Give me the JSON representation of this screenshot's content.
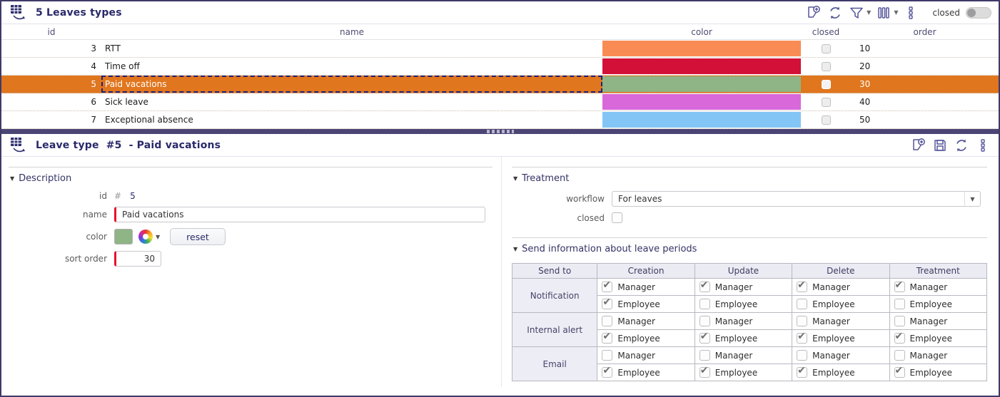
{
  "list_panel": {
    "title": "5 Leaves types",
    "toolbar": {
      "icons": [
        "new-record-icon",
        "refresh-icon",
        "filter-icon",
        "columns-icon",
        "more-menu-icon"
      ],
      "closed_label": "closed",
      "closed_toggle_on": false
    },
    "columns": {
      "id": "id",
      "name": "name",
      "color": "color",
      "closed": "closed",
      "order": "order"
    },
    "rows": [
      {
        "id": "3",
        "name": "RTT",
        "color": "#f98c55",
        "closed": false,
        "order": "10",
        "selected": false
      },
      {
        "id": "4",
        "name": "Time off",
        "color": "#d31038",
        "closed": false,
        "order": "20",
        "selected": false
      },
      {
        "id": "5",
        "name": "Paid vacations",
        "color": "#8fb485",
        "closed": false,
        "order": "30",
        "selected": true
      },
      {
        "id": "6",
        "name": "Sick leave",
        "color": "#d968db",
        "closed": false,
        "order": "40",
        "selected": false
      },
      {
        "id": "7",
        "name": "Exceptional absence",
        "color": "#83c6f5",
        "closed": false,
        "order": "50",
        "selected": false
      }
    ],
    "selected_row_color": "#e0761e"
  },
  "detail_panel": {
    "title_prefix": "Leave type",
    "record_id": "#5",
    "title_suffix": "- Paid vacations",
    "toolbar": {
      "icons": [
        "new-record-icon",
        "save-icon",
        "refresh-icon",
        "more-menu-icon"
      ]
    },
    "description": {
      "section_title": "Description",
      "id_label": "id",
      "id_symbol": "#",
      "id_value": "5",
      "name_label": "name",
      "name_value": "Paid vacations",
      "color_label": "color",
      "color_value": "#8fb485",
      "reset_label": "reset",
      "sort_order_label": "sort order",
      "sort_order_value": "30"
    },
    "treatment": {
      "section_title": "Treatment",
      "workflow_label": "workflow",
      "workflow_value": "For leaves",
      "closed_label": "closed",
      "closed_checked": false
    },
    "send_info": {
      "section_title": "Send information about leave periods",
      "columns": [
        "Send to",
        "Creation",
        "Update",
        "Delete",
        "Treatment"
      ],
      "groups": [
        {
          "label": "Notification",
          "rows": [
            {
              "label": "Manager",
              "checks": [
                true,
                true,
                true,
                true
              ]
            },
            {
              "label": "Employee",
              "checks": [
                true,
                false,
                false,
                false
              ]
            }
          ]
        },
        {
          "label": "Internal alert",
          "rows": [
            {
              "label": "Manager",
              "checks": [
                false,
                false,
                false,
                false
              ]
            },
            {
              "label": "Employee",
              "checks": [
                true,
                true,
                true,
                true
              ]
            }
          ]
        },
        {
          "label": "Email",
          "rows": [
            {
              "label": "Manager",
              "checks": [
                false,
                false,
                false,
                false
              ]
            },
            {
              "label": "Employee",
              "checks": [
                true,
                true,
                true,
                true
              ]
            }
          ]
        }
      ]
    }
  },
  "colors": {
    "window_border": "#3f3a69",
    "splitter": "#4b4575",
    "title_navy": "#29296b",
    "selected_row": "#e0761e",
    "required_red": "#e8112d",
    "icon_indigo": "#55559b",
    "table_header_bg": "#ebebf4"
  }
}
